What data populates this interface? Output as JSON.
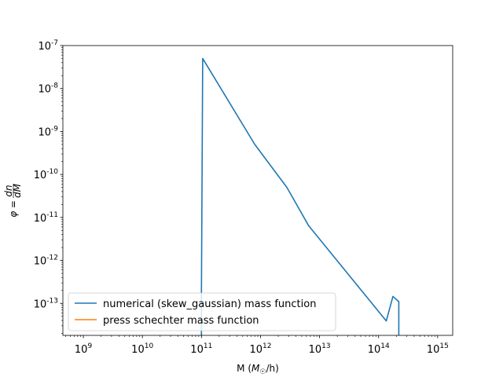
{
  "chart_data": {
    "type": "line",
    "xlabel": "M",
    "xlabel_unit": "(M☉/h)",
    "ylabel": "φ = dn/dM",
    "x_scale": "log",
    "y_scale": "log",
    "xlim": [
      450000000.0,
      1800000000000000.0
    ],
    "ylim": [
      1.8e-14,
      1e-07
    ],
    "x_ticks": [
      {
        "value": 1000000000.0,
        "label": "10^9"
      },
      {
        "value": 10000000000.0,
        "label": "10^10"
      },
      {
        "value": 100000000000.0,
        "label": "10^11"
      },
      {
        "value": 1000000000000.0,
        "label": "10^12"
      },
      {
        "value": 10000000000000.0,
        "label": "10^13"
      },
      {
        "value": 100000000000000.0,
        "label": "10^14"
      },
      {
        "value": 1000000000000000.0,
        "label": "10^15"
      }
    ],
    "y_ticks": [
      {
        "value": 1e-13,
        "label": "10^-13"
      },
      {
        "value": 1e-12,
        "label": "10^-12"
      },
      {
        "value": 1e-11,
        "label": "10^-11"
      },
      {
        "value": 1e-10,
        "label": "10^-10"
      },
      {
        "value": 1e-09,
        "label": "10^-9"
      },
      {
        "value": 1e-08,
        "label": "10^-8"
      },
      {
        "value": 1e-07,
        "label": "10^-7"
      }
    ],
    "grid": false,
    "legend_position": "lower-left",
    "series": [
      {
        "name": "numerical (skew_gaussian) mass function",
        "color": "#1f77b4",
        "points": [
          [
            100000000000.0,
            1e-15
          ],
          [
            100000000000.0,
            2e-13
          ],
          [
            105000000000.0,
            5e-08
          ],
          [
            800000000000.0,
            5e-10
          ],
          [
            2800000000000.0,
            5e-11
          ],
          [
            6500000000000.0,
            6.5e-12
          ],
          [
            135000000000000.0,
            3.9e-14
          ],
          [
            175000000000000.0,
            1.45e-13
          ],
          [
            220000000000000.0,
            1.1e-13
          ],
          [
            220000000000000.0,
            1e-15
          ]
        ]
      },
      {
        "name": "press schechter mass function",
        "color": "#ff7f0e",
        "points": []
      }
    ]
  }
}
